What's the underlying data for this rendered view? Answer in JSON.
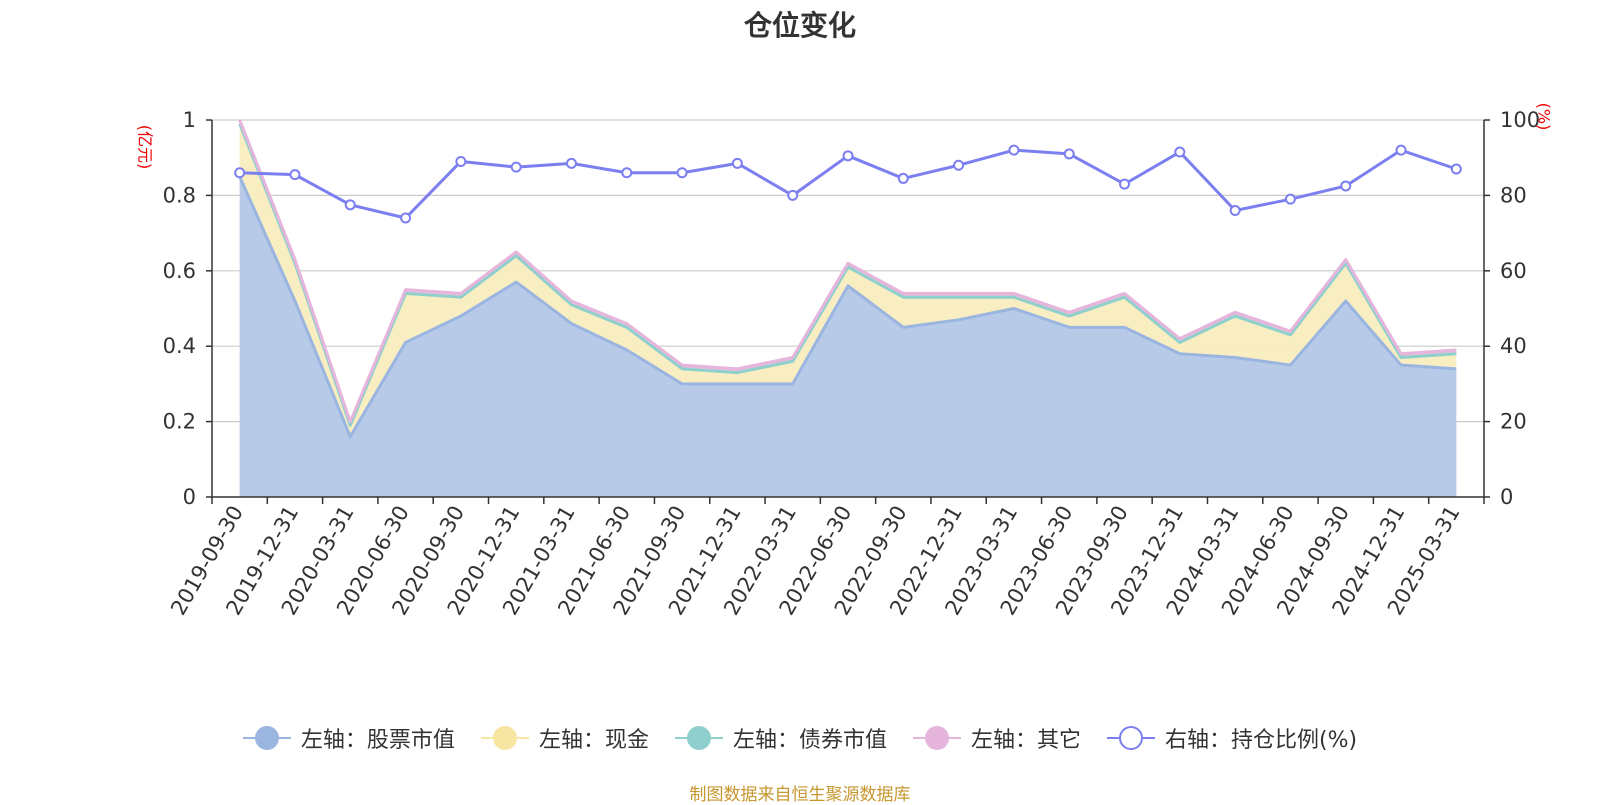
{
  "title": "仓位变化",
  "source_note": "制图数据来自恒生聚源数据库",
  "axis_units": {
    "left": "(亿元)",
    "right": "(%)"
  },
  "colors": {
    "stock": "#9ab5e0",
    "stock_fill": "#b7cbe9",
    "cash": "#f7e6a2",
    "cash_fill": "#f9edbf",
    "bond": "#8fd0cf",
    "other": "#e6b5dc",
    "ratio": "#7b7ff0",
    "grid": "#cccccc",
    "axis": "#333333",
    "unit": "#ee0000"
  },
  "legend": [
    {
      "key": "stock",
      "label": "左轴：股票市值",
      "icon": "filled-circle"
    },
    {
      "key": "cash",
      "label": "左轴：现金",
      "icon": "filled-circle"
    },
    {
      "key": "bond",
      "label": "左轴：债券市值",
      "icon": "filled-circle"
    },
    {
      "key": "other",
      "label": "左轴：其它",
      "icon": "filled-circle"
    },
    {
      "key": "ratio",
      "label": "右轴：持仓比例(%)",
      "icon": "hollow-circle"
    }
  ],
  "chart_data": {
    "type": "area",
    "title": "仓位变化",
    "categories": [
      "2019-09-30",
      "2019-12-31",
      "2020-03-31",
      "2020-06-30",
      "2020-09-30",
      "2020-12-31",
      "2021-03-31",
      "2021-06-30",
      "2021-09-30",
      "2021-12-31",
      "2022-03-31",
      "2022-06-30",
      "2022-09-30",
      "2022-12-31",
      "2023-03-31",
      "2023-06-30",
      "2023-09-30",
      "2023-12-31",
      "2024-03-31",
      "2024-06-30",
      "2024-09-30",
      "2024-12-31",
      "2025-03-31"
    ],
    "stacked": true,
    "left_axis": {
      "label": "(亿元)",
      "ylim": [
        0,
        1
      ],
      "ticks": [
        "0",
        "0.2",
        "0.4",
        "0.6",
        "0.8",
        "1"
      ]
    },
    "right_axis": {
      "label": "(%)",
      "ylim": [
        0,
        100
      ],
      "ticks": [
        "0",
        "20",
        "40",
        "60",
        "80",
        "100"
      ]
    },
    "grid": true,
    "legend_position": "bottom",
    "series": [
      {
        "name": "左轴：股票市值",
        "axis": "left",
        "type": "area",
        "values": [
          0.85,
          0.52,
          0.16,
          0.41,
          0.48,
          0.57,
          0.46,
          0.39,
          0.3,
          0.3,
          0.3,
          0.56,
          0.45,
          0.47,
          0.5,
          0.45,
          0.45,
          0.38,
          0.37,
          0.35,
          0.52,
          0.35,
          0.34
        ]
      },
      {
        "name": "左轴：现金",
        "axis": "left",
        "type": "area",
        "values": [
          0.14,
          0.1,
          0.03,
          0.13,
          0.05,
          0.07,
          0.05,
          0.06,
          0.04,
          0.03,
          0.06,
          0.05,
          0.08,
          0.06,
          0.03,
          0.03,
          0.08,
          0.03,
          0.11,
          0.08,
          0.1,
          0.02,
          0.04
        ]
      },
      {
        "name": "左轴：债券市值",
        "axis": "left",
        "type": "area",
        "values": [
          0,
          0,
          0,
          0,
          0,
          0,
          0,
          0,
          0,
          0,
          0,
          0,
          0,
          0,
          0,
          0,
          0,
          0,
          0,
          0,
          0,
          0,
          0
        ]
      },
      {
        "name": "左轴：其它",
        "axis": "left",
        "type": "area",
        "values": [
          0.01,
          0.01,
          0.01,
          0.01,
          0.01,
          0.01,
          0.01,
          0.01,
          0.01,
          0.01,
          0.01,
          0.01,
          0.01,
          0.01,
          0.01,
          0.01,
          0.01,
          0.01,
          0.01,
          0.01,
          0.01,
          0.01,
          0.01
        ]
      },
      {
        "name": "右轴：持仓比例(%)",
        "axis": "right",
        "type": "line",
        "values": [
          86,
          85.5,
          77.5,
          74,
          89,
          87.5,
          88.5,
          86,
          86,
          88.5,
          80,
          90.5,
          84.5,
          88,
          92,
          91,
          83,
          91.5,
          76,
          79,
          82.5,
          92,
          87
        ]
      }
    ]
  }
}
